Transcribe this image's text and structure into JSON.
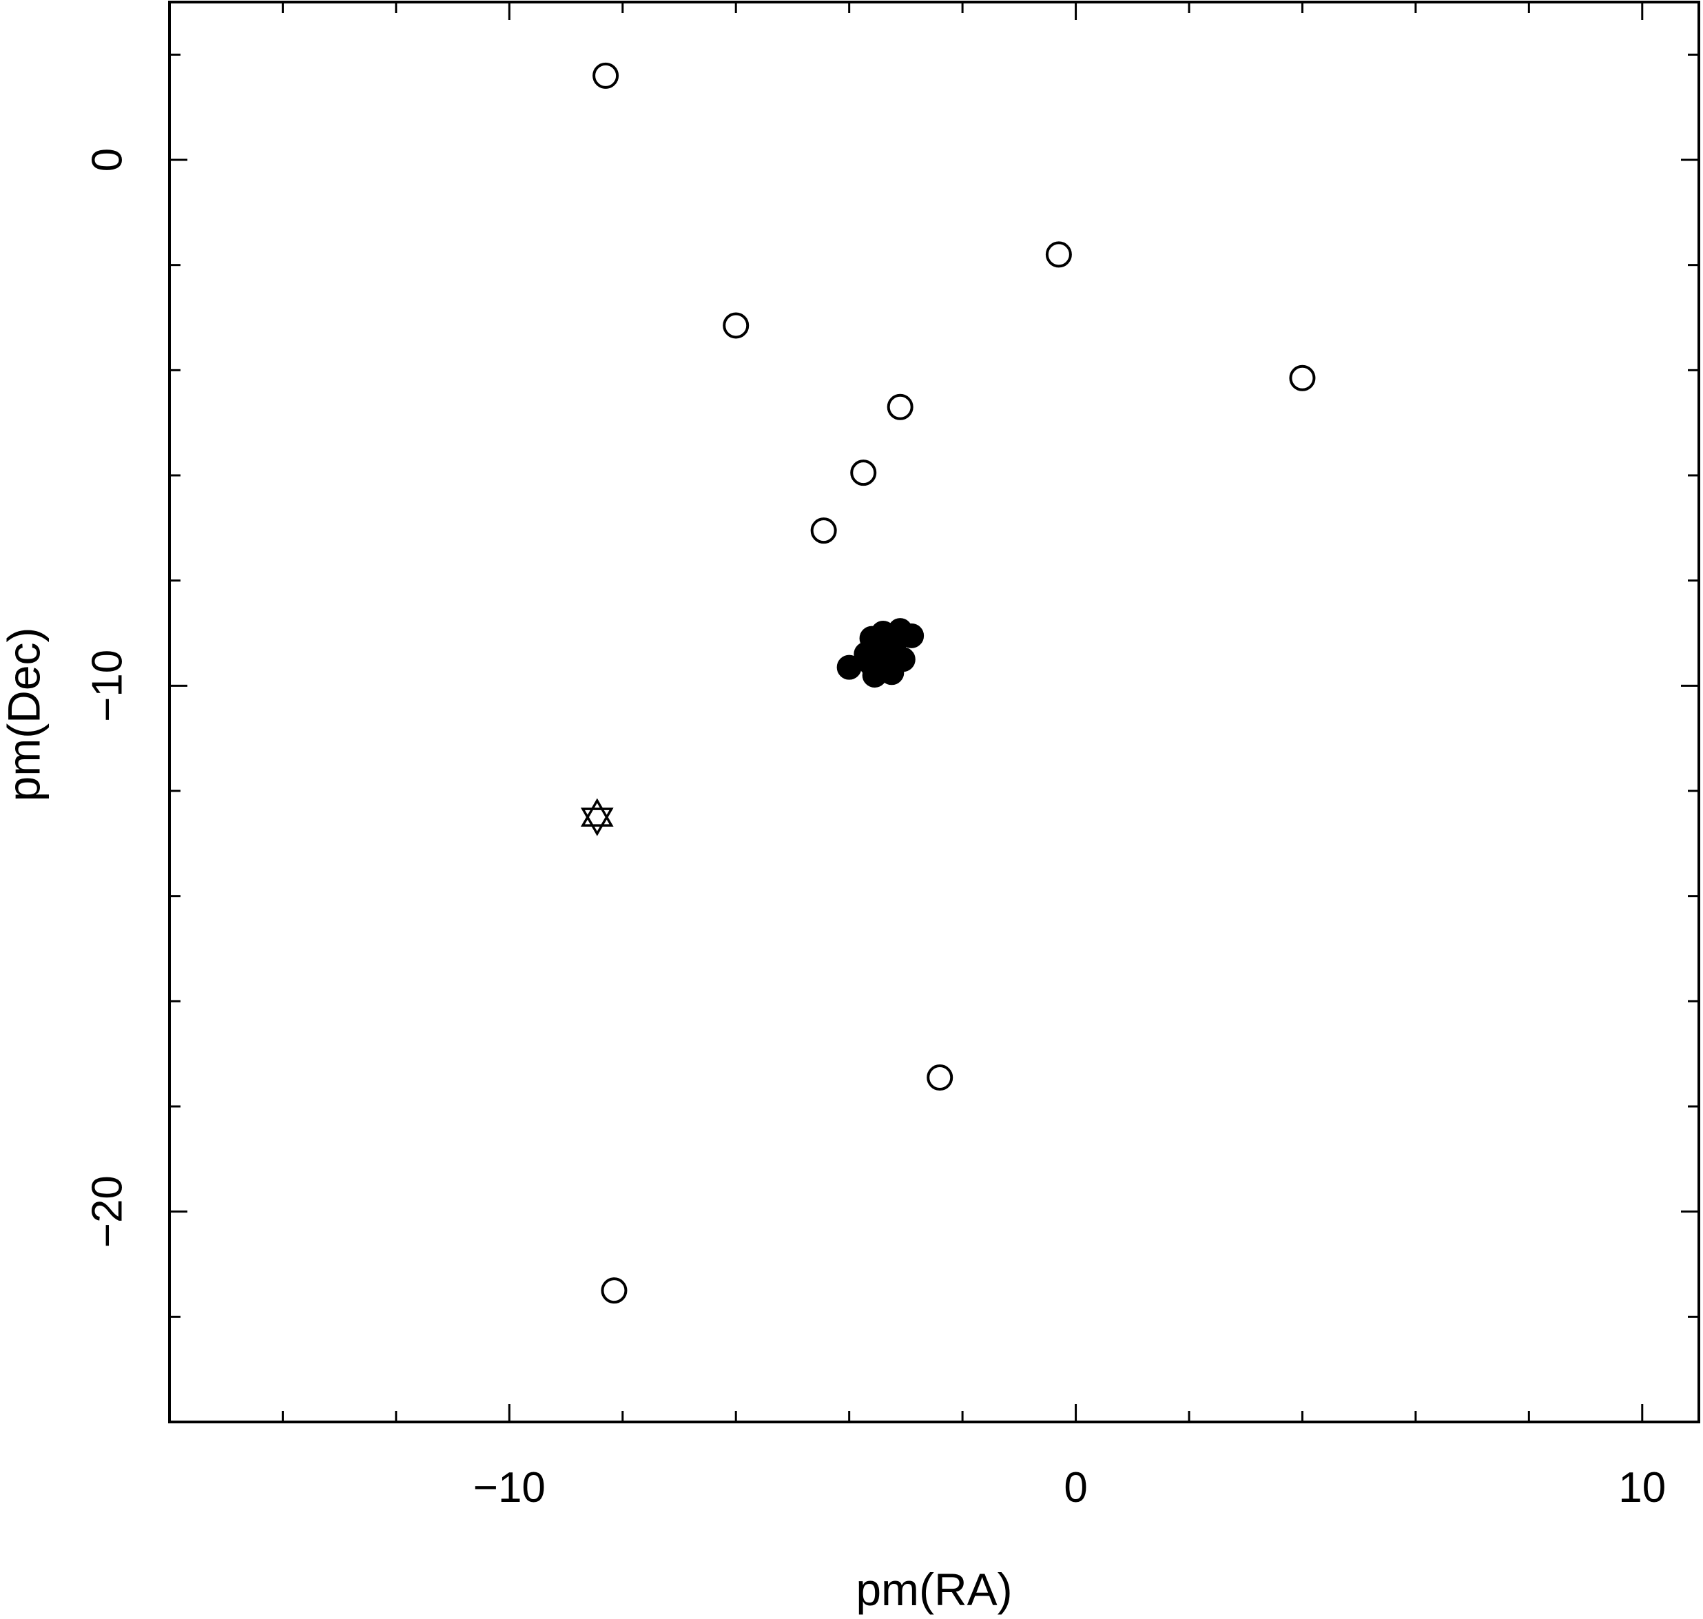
{
  "chart_data": {
    "type": "scatter",
    "title": "",
    "xlabel": "pm(RA)",
    "ylabel": "pm(Dec)",
    "xlim": [
      -16,
      11
    ],
    "ylim": [
      -24,
      3
    ],
    "x_ticks": [
      -10,
      0,
      10
    ],
    "x_tick_labels": [
      "−10",
      "0",
      "10"
    ],
    "y_ticks": [
      0,
      -10,
      -20
    ],
    "y_tick_labels": [
      "0",
      "−10",
      "−20"
    ],
    "grid": false,
    "legend": "none",
    "marker_color": "#000000",
    "series": [
      {
        "marker": "open-circle",
        "points": [
          [
            -8.3,
            1.6
          ],
          [
            -6.0,
            -3.15
          ],
          [
            -0.3,
            -1.8
          ],
          [
            4.0,
            -4.15
          ],
          [
            -3.1,
            -4.7
          ],
          [
            -3.75,
            -5.95
          ],
          [
            -4.45,
            -7.05
          ],
          [
            -2.4,
            -17.45
          ],
          [
            -8.15,
            -21.5
          ]
        ]
      },
      {
        "marker": "filled-circle",
        "points": [
          [
            -4.0,
            -9.65
          ],
          [
            -3.6,
            -9.1
          ],
          [
            -3.4,
            -9.0
          ],
          [
            -3.3,
            -9.2
          ],
          [
            -3.1,
            -8.95
          ],
          [
            -2.9,
            -9.05
          ],
          [
            -3.2,
            -9.35
          ],
          [
            -3.5,
            -9.3
          ],
          [
            -3.7,
            -9.4
          ],
          [
            -3.3,
            -9.6
          ],
          [
            -3.55,
            -9.8
          ],
          [
            -3.25,
            -9.75
          ],
          [
            -3.05,
            -9.5
          ],
          [
            -3.45,
            -9.55
          ],
          [
            -3.6,
            -9.6
          ]
        ]
      },
      {
        "marker": "star-of-david",
        "points": [
          [
            -8.45,
            -12.5
          ]
        ]
      }
    ]
  }
}
